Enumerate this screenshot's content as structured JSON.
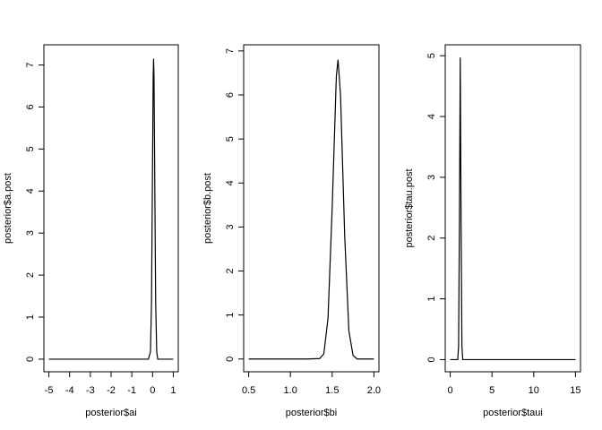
{
  "chart_data": [
    {
      "type": "line",
      "xlabel": "posterior$ai",
      "ylabel": "posterior$a.post",
      "color": "#000000",
      "x": [
        -5,
        -4,
        -3,
        -2,
        -1,
        -0.2,
        -0.1,
        -0.05,
        0,
        0.03,
        0.05,
        0.07,
        0.1,
        0.15,
        0.2,
        0.25,
        0.5,
        1
      ],
      "values": [
        0,
        0,
        0,
        0,
        0,
        0,
        0.18,
        1.37,
        4.7,
        6.7,
        7.15,
        6.7,
        4.7,
        1.37,
        0.18,
        0,
        0,
        0
      ],
      "xlim": [
        -5.24,
        1.24
      ],
      "ylim": [
        -0.3,
        7.48
      ],
      "xticks": [
        -5,
        -4,
        -3,
        -2,
        -1,
        0,
        1
      ],
      "yticks": [
        0,
        1,
        2,
        3,
        4,
        5,
        6,
        7
      ]
    },
    {
      "type": "line",
      "xlabel": "posterior$bi",
      "ylabel": "posterior$b.post",
      "color": "#000000",
      "x": [
        0.5,
        1.2,
        1.35,
        1.4,
        1.45,
        1.5,
        1.55,
        1.57,
        1.6,
        1.65,
        1.7,
        1.75,
        1.8,
        2.0
      ],
      "values": [
        0,
        0,
        0.01,
        0.12,
        0.92,
        3.43,
        6.43,
        6.8,
        6.0,
        2.8,
        0.64,
        0.08,
        0,
        0
      ],
      "xlim": [
        0.44,
        2.06
      ],
      "ylim": [
        -0.29,
        7.14
      ],
      "xticks": [
        0.5,
        {
          "value": 1,
          "label": "1.0"
        },
        1.5,
        {
          "value": 2,
          "label": "2.0"
        }
      ],
      "yticks": [
        0,
        1,
        2,
        3,
        4,
        5,
        6,
        7
      ]
    },
    {
      "type": "line",
      "xlabel": "posterior$taui",
      "ylabel": "posterior$tau.post",
      "color": "#000000",
      "x": [
        0,
        0.9,
        1.0,
        1.1,
        1.2,
        1.3,
        1.4,
        1.5,
        15
      ],
      "values": [
        0,
        0,
        0.22,
        2.27,
        4.97,
        2.27,
        0.22,
        0,
        0
      ],
      "xlim": [
        -0.6,
        15.6
      ],
      "ylim": [
        -0.2,
        5.18
      ],
      "xticks": [
        0,
        5,
        10,
        15
      ],
      "yticks": [
        0,
        1,
        2,
        3,
        4,
        5
      ]
    }
  ]
}
